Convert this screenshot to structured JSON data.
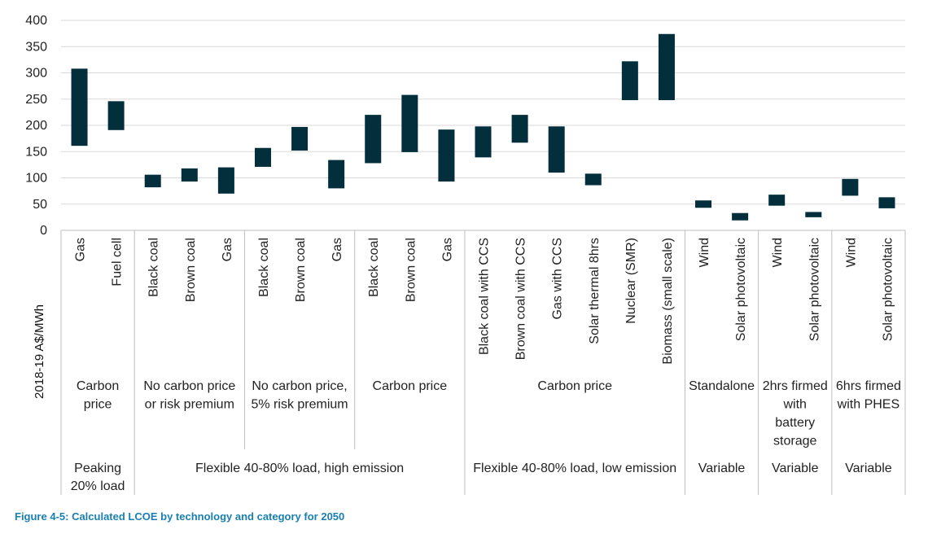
{
  "caption": "Figure 4-5: Calculated LCOE by technology and category for 2050",
  "chart_data": {
    "type": "bar",
    "subtype": "floating-range",
    "ylabel": "2018-19 A$/MWh",
    "ylim": [
      0,
      400
    ],
    "yticks": [
      0,
      50,
      100,
      150,
      200,
      250,
      300,
      350,
      400
    ],
    "grid": true,
    "bar_color": "#032f3d",
    "categories": [
      "Gas",
      "Fuel cell",
      "Black coal",
      "Brown coal",
      "Gas",
      "Black coal",
      "Brown coal",
      "Gas",
      "Black coal",
      "Brown coal",
      "Gas",
      "Black coal with CCS",
      "Brown coal with CCS",
      "Gas with CCS",
      "Solar thermal 8hrs",
      "Nuclear (SMR)",
      "Biomass (small scale)",
      "Wind",
      "Solar photovoltaic",
      "Wind",
      "Solar photovoltaic",
      "Wind",
      "Solar photovoltaic"
    ],
    "ranges": [
      [
        161,
        308
      ],
      [
        191,
        246
      ],
      [
        82,
        106
      ],
      [
        93,
        118
      ],
      [
        70,
        120
      ],
      [
        121,
        157
      ],
      [
        152,
        197
      ],
      [
        80,
        134
      ],
      [
        128,
        220
      ],
      [
        149,
        258
      ],
      [
        93,
        192
      ],
      [
        139,
        198
      ],
      [
        167,
        220
      ],
      [
        110,
        198
      ],
      [
        86,
        108
      ],
      [
        248,
        322
      ],
      [
        248,
        374
      ],
      [
        43,
        57
      ],
      [
        19,
        33
      ],
      [
        47,
        68
      ],
      [
        25,
        35
      ],
      [
        66,
        98
      ],
      [
        42,
        63
      ]
    ],
    "subgroups": [
      {
        "label": [
          "Carbon",
          "price"
        ],
        "start": 0,
        "count": 2
      },
      {
        "label": [
          "No carbon price",
          "or risk premium"
        ],
        "start": 2,
        "count": 3
      },
      {
        "label": [
          "No carbon price,",
          "5% risk premium"
        ],
        "start": 5,
        "count": 3
      },
      {
        "label": [
          "Carbon price"
        ],
        "start": 8,
        "count": 3
      },
      {
        "label": [
          "Carbon price"
        ],
        "start": 11,
        "count": 6
      },
      {
        "label": [
          "Standalone"
        ],
        "start": 17,
        "count": 2
      },
      {
        "label": [
          "2hrs firmed",
          "with",
          "battery",
          "storage"
        ],
        "start": 19,
        "count": 2
      },
      {
        "label": [
          "6hrs firmed",
          "with PHES"
        ],
        "start": 21,
        "count": 2
      }
    ],
    "groups": [
      {
        "label": [
          "Peaking",
          "20% load"
        ],
        "start": 0,
        "count": 2
      },
      {
        "label": [
          "Flexible 40-80% load, high emission"
        ],
        "start": 2,
        "count": 9
      },
      {
        "label": [
          "Flexible 40-80% load, low emission"
        ],
        "start": 11,
        "count": 6
      },
      {
        "label": [
          "Variable"
        ],
        "start": 17,
        "count": 2
      },
      {
        "label": [
          "Variable"
        ],
        "start": 19,
        "count": 2
      },
      {
        "label": [
          "Variable"
        ],
        "start": 21,
        "count": 2
      }
    ]
  }
}
